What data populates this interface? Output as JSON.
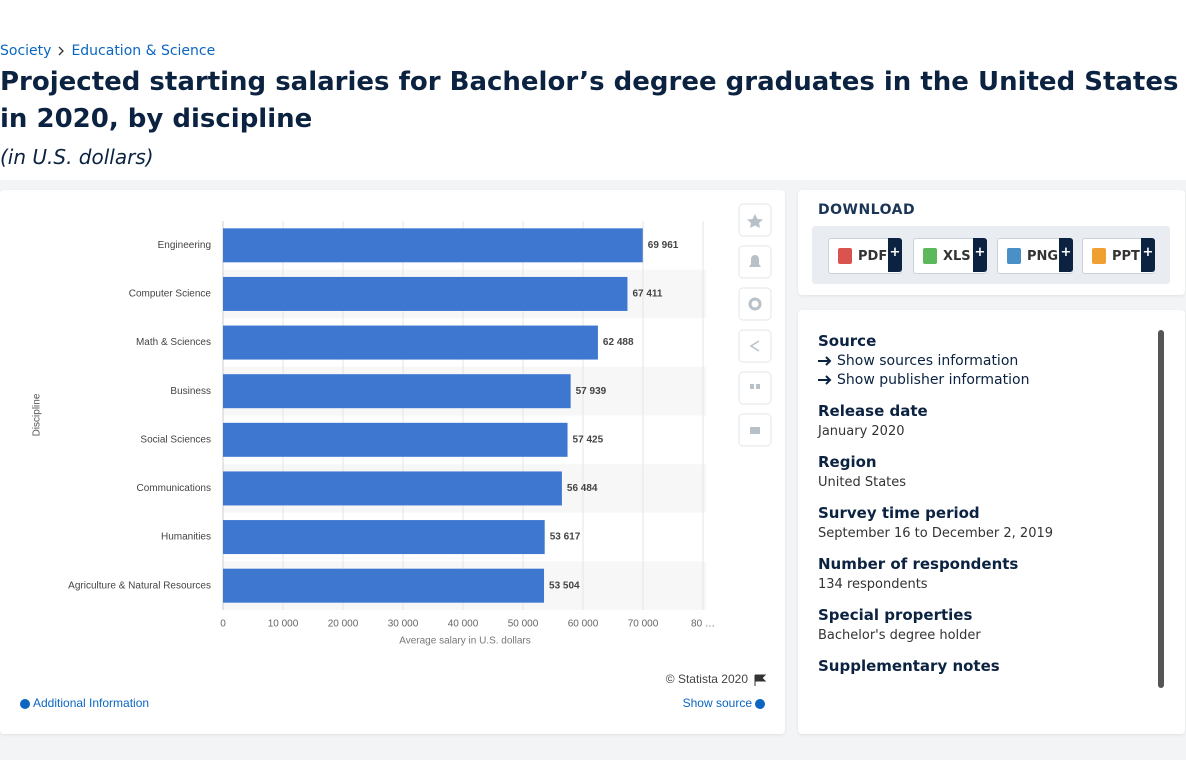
{
  "breadcrumb": [
    "Society",
    "Education & Science"
  ],
  "header": {
    "title": "Projected starting salaries for Bachelor’s degree graduates in the United States in 2020, by discipline",
    "subtitle": "(in U.S. dollars)"
  },
  "chart_data": {
    "type": "bar",
    "orientation": "horizontal",
    "categories": [
      "Engineering",
      "Computer Science",
      "Math & Sciences",
      "Business",
      "Social Sciences",
      "Communications",
      "Humanities",
      "Agriculture & Natural Resources"
    ],
    "values": [
      69961,
      67411,
      62488,
      57939,
      57425,
      56484,
      53617,
      53504
    ],
    "value_labels": [
      "69 961",
      "67 411",
      "62 488",
      "57 939",
      "57 425",
      "56 484",
      "53 617",
      "53 504"
    ],
    "color": "#3e77cf",
    "xlim": [
      0,
      80000
    ],
    "xticks": [
      0,
      {
        "value": 10000,
        "label": "10 000"
      },
      {
        "value": 20000,
        "label": "20 000"
      },
      {
        "value": 30000,
        "label": "30 000"
      },
      {
        "value": 40000,
        "label": "40 000"
      },
      {
        "value": 50000,
        "label": "50 000"
      },
      {
        "value": 60000,
        "label": "60 000"
      },
      {
        "value": 70000,
        "label": "70 000"
      },
      {
        "value": 80000,
        "label": "80 …"
      }
    ],
    "x_label": "Average salary in U.S. dollars",
    "y_label": "Discipline",
    "grid": true
  },
  "chart_footer": {
    "copyright": "© Statista 2020",
    "show_source": "Show source",
    "additional_information": "Additional Information"
  },
  "download": {
    "title": "DOWNLOAD",
    "buttons": [
      "PDF",
      "XLS",
      "PNG",
      "PPT"
    ],
    "plus": "+"
  },
  "details": {
    "source_title": "Source",
    "links": [
      "Show sources information",
      "Show publisher information"
    ],
    "items": [
      {
        "label": "Release date",
        "value": "January 2020"
      },
      {
        "label": "Region",
        "value": "United States"
      },
      {
        "label": "Survey time period",
        "value": "September 16 to December 2, 2019"
      },
      {
        "label": "Number of respondents",
        "value": "134 respondents"
      },
      {
        "label": "Special properties",
        "value": "Bachelor's degree holder"
      },
      {
        "label": "Supplementary notes"
      }
    ]
  }
}
